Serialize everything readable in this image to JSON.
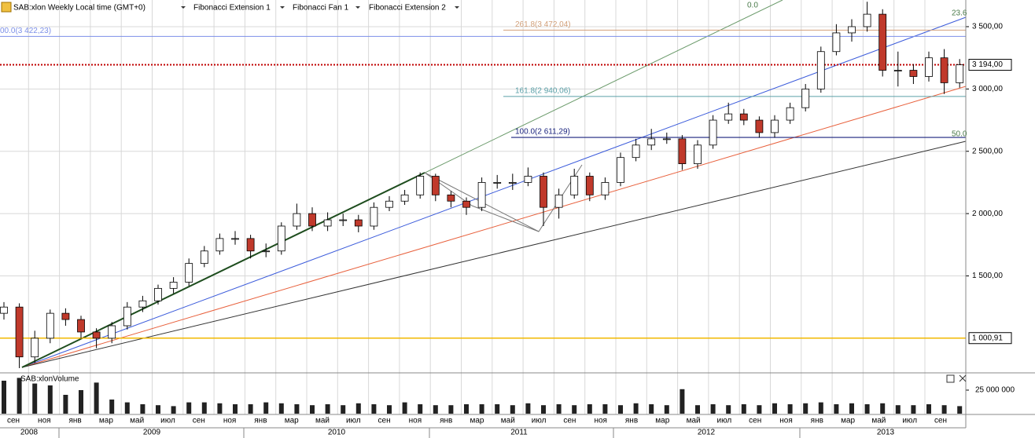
{
  "chart_data": {
    "type": "candlestick",
    "toolbar": [
      "SAB:xlon Weekly Local time (GMT+0)",
      "Fibonacci Extension 1",
      "Fibonacci Fan 1",
      "Fibonacci Extension 2"
    ],
    "ylim": [
      741,
      3714
    ],
    "yticks": [
      {
        "value": 1500,
        "label": "1 500,00"
      },
      {
        "value": 2000,
        "label": "2 000,00"
      },
      {
        "value": 2500,
        "label": "2 500,00"
      },
      {
        "value": 3000,
        "label": "3 000,00"
      },
      {
        "value": 3500,
        "label": "3 500,00"
      }
    ],
    "grid": true,
    "up_color": "#ffffff",
    "down_color": "#c0392b",
    "candles": [
      [
        1200,
        1290,
        1150,
        1250
      ],
      [
        1250,
        1280,
        760,
        850
      ],
      [
        850,
        1060,
        800,
        1000
      ],
      [
        1000,
        1230,
        960,
        1200
      ],
      [
        1200,
        1240,
        1100,
        1150
      ],
      [
        1150,
        1180,
        1000,
        1050
      ],
      [
        1050,
        1080,
        920,
        1000
      ],
      [
        1000,
        1130,
        960,
        1100
      ],
      [
        1100,
        1290,
        1070,
        1250
      ],
      [
        1250,
        1340,
        1210,
        1300
      ],
      [
        1300,
        1430,
        1270,
        1400
      ],
      [
        1400,
        1490,
        1360,
        1450
      ],
      [
        1450,
        1640,
        1420,
        1600
      ],
      [
        1600,
        1740,
        1570,
        1700
      ],
      [
        1700,
        1840,
        1670,
        1800
      ],
      [
        1800,
        1860,
        1750,
        1800
      ],
      [
        1800,
        1830,
        1640,
        1700
      ],
      [
        1700,
        1760,
        1650,
        1700
      ],
      [
        1700,
        1930,
        1670,
        1900
      ],
      [
        1900,
        2080,
        1870,
        2000
      ],
      [
        2000,
        2050,
        1860,
        1900
      ],
      [
        1900,
        2010,
        1860,
        1950
      ],
      [
        1950,
        2000,
        1900,
        1950
      ],
      [
        1950,
        1990,
        1850,
        1900
      ],
      [
        1900,
        2090,
        1870,
        2050
      ],
      [
        2050,
        2140,
        2020,
        2100
      ],
      [
        2100,
        2190,
        2070,
        2150
      ],
      [
        2150,
        2330,
        2120,
        2300
      ],
      [
        2300,
        2320,
        2100,
        2150
      ],
      [
        2150,
        2180,
        2050,
        2100
      ],
      [
        2100,
        2130,
        1990,
        2050
      ],
      [
        2050,
        2290,
        2020,
        2250
      ],
      [
        2250,
        2310,
        2200,
        2250
      ],
      [
        2250,
        2320,
        2190,
        2250
      ],
      [
        2250,
        2370,
        2220,
        2300
      ],
      [
        2300,
        2330,
        1900,
        2050
      ],
      [
        2050,
        2200,
        1960,
        2150
      ],
      [
        2150,
        2360,
        2120,
        2300
      ],
      [
        2300,
        2330,
        2100,
        2150
      ],
      [
        2150,
        2290,
        2110,
        2250
      ],
      [
        2250,
        2490,
        2220,
        2450
      ],
      [
        2450,
        2600,
        2420,
        2550
      ],
      [
        2550,
        2680,
        2510,
        2600
      ],
      [
        2600,
        2650,
        2560,
        2600
      ],
      [
        2600,
        2630,
        2350,
        2400
      ],
      [
        2400,
        2590,
        2360,
        2550
      ],
      [
        2550,
        2790,
        2520,
        2750
      ],
      [
        2750,
        2890,
        2720,
        2800
      ],
      [
        2800,
        2840,
        2710,
        2750
      ],
      [
        2750,
        2780,
        2610,
        2650
      ],
      [
        2650,
        2790,
        2610,
        2750
      ],
      [
        2750,
        2890,
        2720,
        2850
      ],
      [
        2850,
        3040,
        2820,
        3000
      ],
      [
        3000,
        3340,
        2970,
        3300
      ],
      [
        3300,
        3520,
        3270,
        3450
      ],
      [
        3450,
        3560,
        3380,
        3500
      ],
      [
        3500,
        3700,
        3460,
        3600
      ],
      [
        3600,
        3640,
        3100,
        3150
      ],
      [
        3150,
        3300,
        3020,
        3150
      ],
      [
        3150,
        3200,
        3040,
        3100
      ],
      [
        3100,
        3300,
        3060,
        3250
      ],
      [
        3250,
        3320,
        2960,
        3050
      ],
      [
        3050,
        3240,
        3010,
        3194
      ]
    ],
    "levels": [
      {
        "label": "00.0(3 422,23)",
        "value": 3422.23,
        "color": "#7b8fe8"
      },
      {
        "label": "261.8(3 472,04)",
        "value": 3472.04,
        "color": "#d2a07a"
      },
      {
        "label": "161.8(2 940,06)",
        "value": 2940.06,
        "color": "#5aa0a8"
      },
      {
        "label": "100.0(2 611,29)",
        "value": 2611.29,
        "color": "#1a237e"
      }
    ],
    "fan_labels": [
      "0.0",
      "23.6",
      "50.0"
    ],
    "price_marks": [
      {
        "value": 3194,
        "label": "3 194,00",
        "color": "#c00000"
      },
      {
        "value": 1000.91,
        "label": "1 000,91",
        "color": "#f2b800"
      }
    ],
    "volume": {
      "title": "SAB:xlonVolume",
      "ylim": [
        0,
        42500000
      ],
      "yticks": [
        {
          "value": 25000000,
          "label": "25 000 000"
        }
      ],
      "values": [
        35000000,
        38000000,
        32000000,
        30000000,
        20000000,
        25000000,
        33000000,
        15000000,
        12000000,
        10000000,
        9000000,
        8000000,
        12000000,
        12000000,
        11000000,
        10000000,
        10000000,
        12000000,
        11000000,
        10000000,
        9000000,
        10000000,
        9000000,
        11000000,
        10000000,
        9000000,
        12000000,
        10000000,
        9000000,
        9000000,
        10000000,
        10000000,
        10000000,
        9000000,
        11000000,
        9000000,
        10000000,
        9000000,
        10000000,
        10000000,
        9000000,
        11000000,
        10000000,
        9000000,
        26000000,
        9000000,
        10000000,
        9000000,
        10000000,
        9000000,
        11000000,
        10000000,
        11000000,
        12000000,
        10000000,
        11000000,
        10000000,
        11000000,
        9000000,
        9000000,
        10000000,
        9000000,
        8000000
      ]
    },
    "months": [
      "сен",
      "ноя",
      "янв",
      "мар",
      "май",
      "июл",
      "сен",
      "ноя",
      "янв",
      "мар",
      "май",
      "июл",
      "сен",
      "ноя",
      "янв",
      "мар",
      "май",
      "июл",
      "сен",
      "ноя",
      "янв",
      "мар",
      "май",
      "июл",
      "сен",
      "ноя",
      "янв",
      "мар",
      "май",
      "июл",
      "сен"
    ],
    "years": [
      "2008",
      "2009",
      "2010",
      "2011",
      "2012",
      "2013"
    ]
  }
}
